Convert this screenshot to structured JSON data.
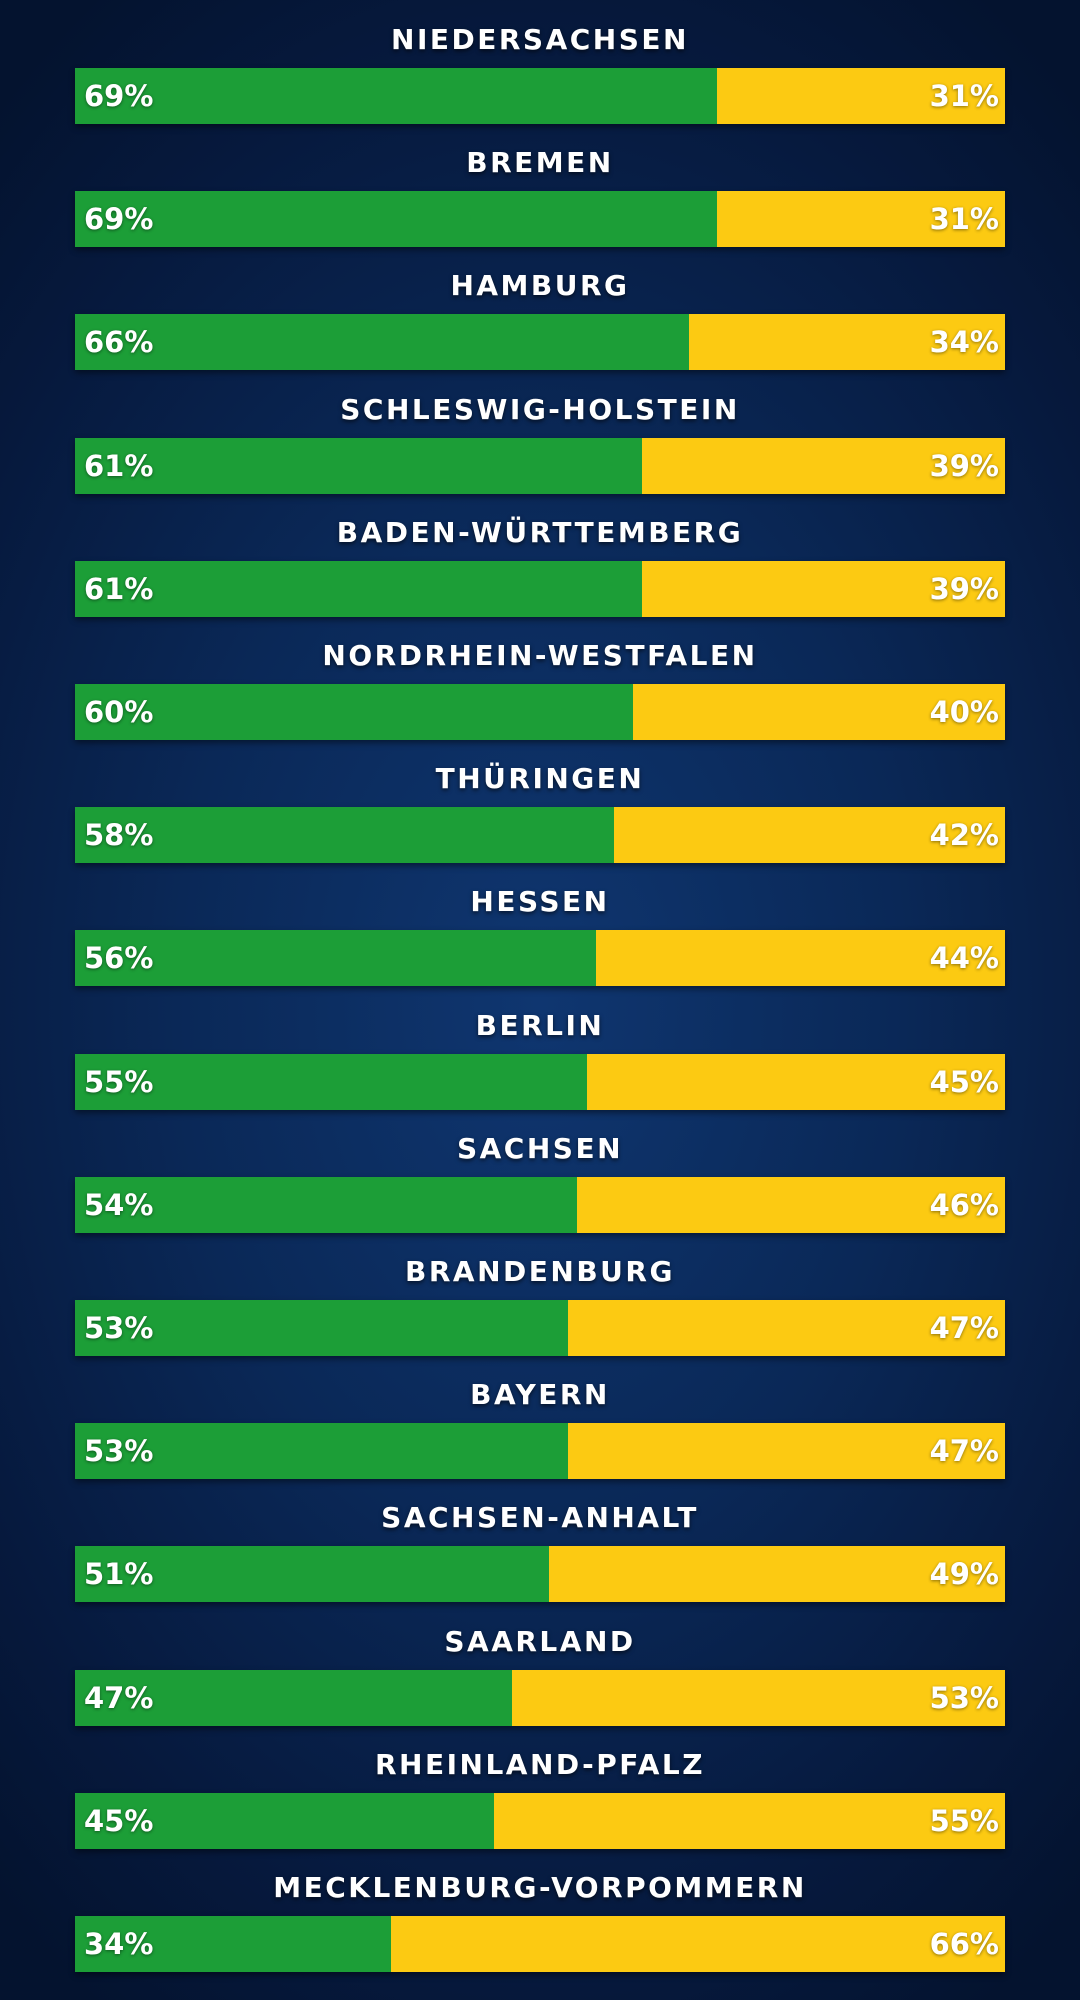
{
  "chart_data": {
    "type": "bar",
    "stacked": true,
    "orientation": "horizontal",
    "categories": [
      "NIEDERSACHSEN",
      "BREMEN",
      "HAMBURG",
      "SCHLESWIG-HOLSTEIN",
      "BADEN-WÜRTTEMBERG",
      "NORDRHEIN-WESTFALEN",
      "THÜRINGEN",
      "HESSEN",
      "BERLIN",
      "SACHSEN",
      "BRANDENBURG",
      "BAYERN",
      "SACHSEN-ANHALT",
      "SAARLAND",
      "RHEINLAND-PFALZ",
      "MECKLENBURG-VORPOMMERN"
    ],
    "series": [
      {
        "color": "#1c9e37",
        "values": [
          69,
          69,
          66,
          61,
          61,
          60,
          58,
          56,
          55,
          54,
          53,
          53,
          51,
          47,
          45,
          34
        ],
        "labels": [
          "69%",
          "69%",
          "66%",
          "61%",
          "61%",
          "60%",
          "58%",
          "56%",
          "55%",
          "54%",
          "53%",
          "53%",
          "51%",
          "47%",
          "45%",
          "34%"
        ]
      },
      {
        "color": "#fcca12",
        "values": [
          31,
          31,
          34,
          39,
          39,
          40,
          42,
          44,
          45,
          46,
          47,
          47,
          49,
          53,
          55,
          66
        ],
        "labels": [
          "31%",
          "31%",
          "34%",
          "39%",
          "39%",
          "40%",
          "42%",
          "44%",
          "45%",
          "46%",
          "47%",
          "47%",
          "49%",
          "53%",
          "55%",
          "66%"
        ]
      }
    ],
    "xlim": [
      0,
      100
    ],
    "title": "",
    "xlabel": "",
    "ylabel": "",
    "grid": false,
    "legend": "none",
    "background": "#0a2857"
  }
}
